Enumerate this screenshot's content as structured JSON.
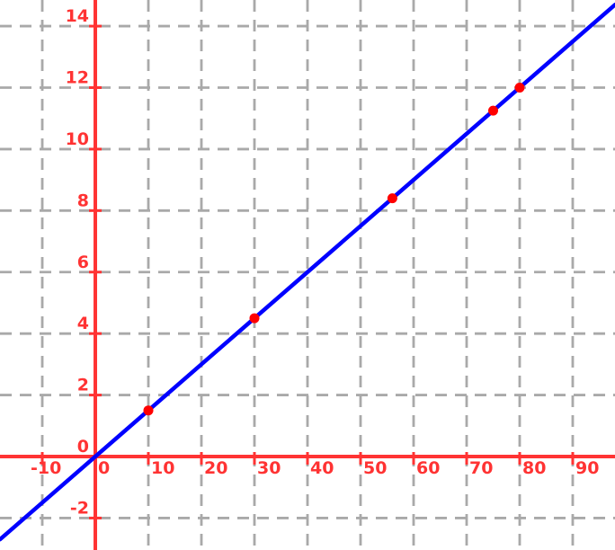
{
  "chart_data": {
    "type": "line",
    "title": "",
    "xlabel": "",
    "ylabel": "",
    "grid": true,
    "legend": false,
    "background_color": "#ffffff",
    "grid_color": "#a9a9a9",
    "axis_color": "#ff3333",
    "label_color": "#ff3333",
    "line_color": "#0000ff",
    "point_color": "#ff0000",
    "xlim": [
      -17.97,
      97.97
    ],
    "ylim": [
      -3.04,
      14.85
    ],
    "x_ticks": [
      -10,
      0,
      10,
      20,
      30,
      40,
      50,
      60,
      70,
      80,
      90
    ],
    "x_tick_labels": [
      "-10",
      "0",
      "10",
      "20",
      "30",
      "40",
      "50",
      "60",
      "70",
      "80",
      "90"
    ],
    "y_ticks": [
      -2,
      0,
      2,
      4,
      6,
      8,
      10,
      12,
      14
    ],
    "y_tick_labels": [
      "-2",
      "0",
      "2",
      "4",
      "6",
      "8",
      "10",
      "12",
      "14"
    ],
    "line": {
      "slope": 0.15,
      "intercept": 0
    },
    "points": [
      {
        "x": 10,
        "y": 1.5
      },
      {
        "x": 30,
        "y": 4.5
      },
      {
        "x": 56,
        "y": 8.4
      },
      {
        "x": 75,
        "y": 11.25
      },
      {
        "x": 80,
        "y": 12
      }
    ],
    "style": {
      "line_width": 4.5,
      "axis_width": 4,
      "grid_width": 2.8,
      "grid_dash": "13 9",
      "tick_length": 14,
      "tick_width": 3,
      "point_radius": 5.5,
      "font_size": 19
    }
  }
}
